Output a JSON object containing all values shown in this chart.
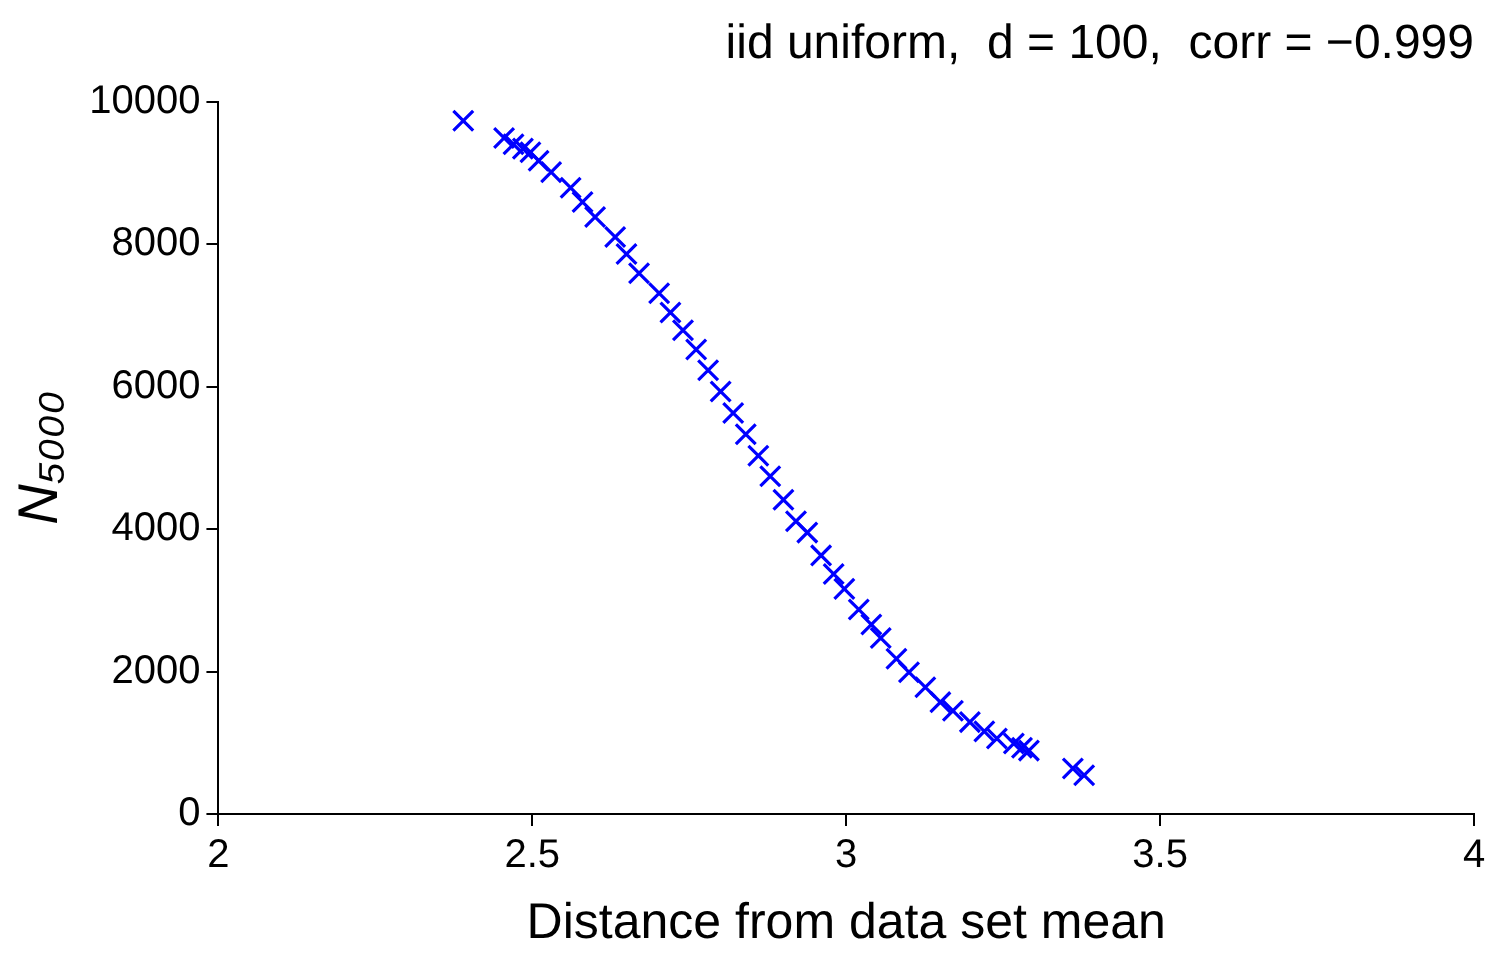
{
  "chart_data": {
    "type": "scatter",
    "title": "iid uniform,  d = 100,  corr = −0.999",
    "xlabel": "Distance from data set mean",
    "ylabel": "N₅₀₀₀",
    "x": [
      2.39,
      2.455,
      2.47,
      2.485,
      2.497,
      2.51,
      2.53,
      2.561,
      2.58,
      2.6,
      2.632,
      2.65,
      2.67,
      2.702,
      2.72,
      2.74,
      2.761,
      2.78,
      2.8,
      2.82,
      2.84,
      2.86,
      2.879,
      2.9,
      2.92,
      2.938,
      2.96,
      2.98,
      2.997,
      3.02,
      3.04,
      3.055,
      3.08,
      3.1,
      3.126,
      3.15,
      3.17,
      3.197,
      3.22,
      3.24,
      3.267,
      3.28,
      3.291,
      3.361,
      3.379
    ],
    "values": [
      9730,
      9490,
      9400,
      9340,
      9290,
      9170,
      9010,
      8790,
      8590,
      8380,
      8100,
      7860,
      7590,
      7310,
      7040,
      6790,
      6520,
      6230,
      5930,
      5630,
      5330,
      5030,
      4740,
      4410,
      4110,
      3950,
      3630,
      3370,
      3160,
      2870,
      2660,
      2470,
      2180,
      1990,
      1780,
      1570,
      1450,
      1290,
      1160,
      1060,
      990,
      930,
      890,
      640,
      545
    ],
    "color": "#0000ff",
    "marker": "cross",
    "xlim": [
      2,
      4
    ],
    "xticks": [
      2,
      2.5,
      3,
      3.5,
      4
    ],
    "ylim": [
      0,
      10000
    ],
    "yticks": [
      0,
      2000,
      4000,
      6000,
      8000,
      10000
    ],
    "grid": false,
    "legend": false
  }
}
